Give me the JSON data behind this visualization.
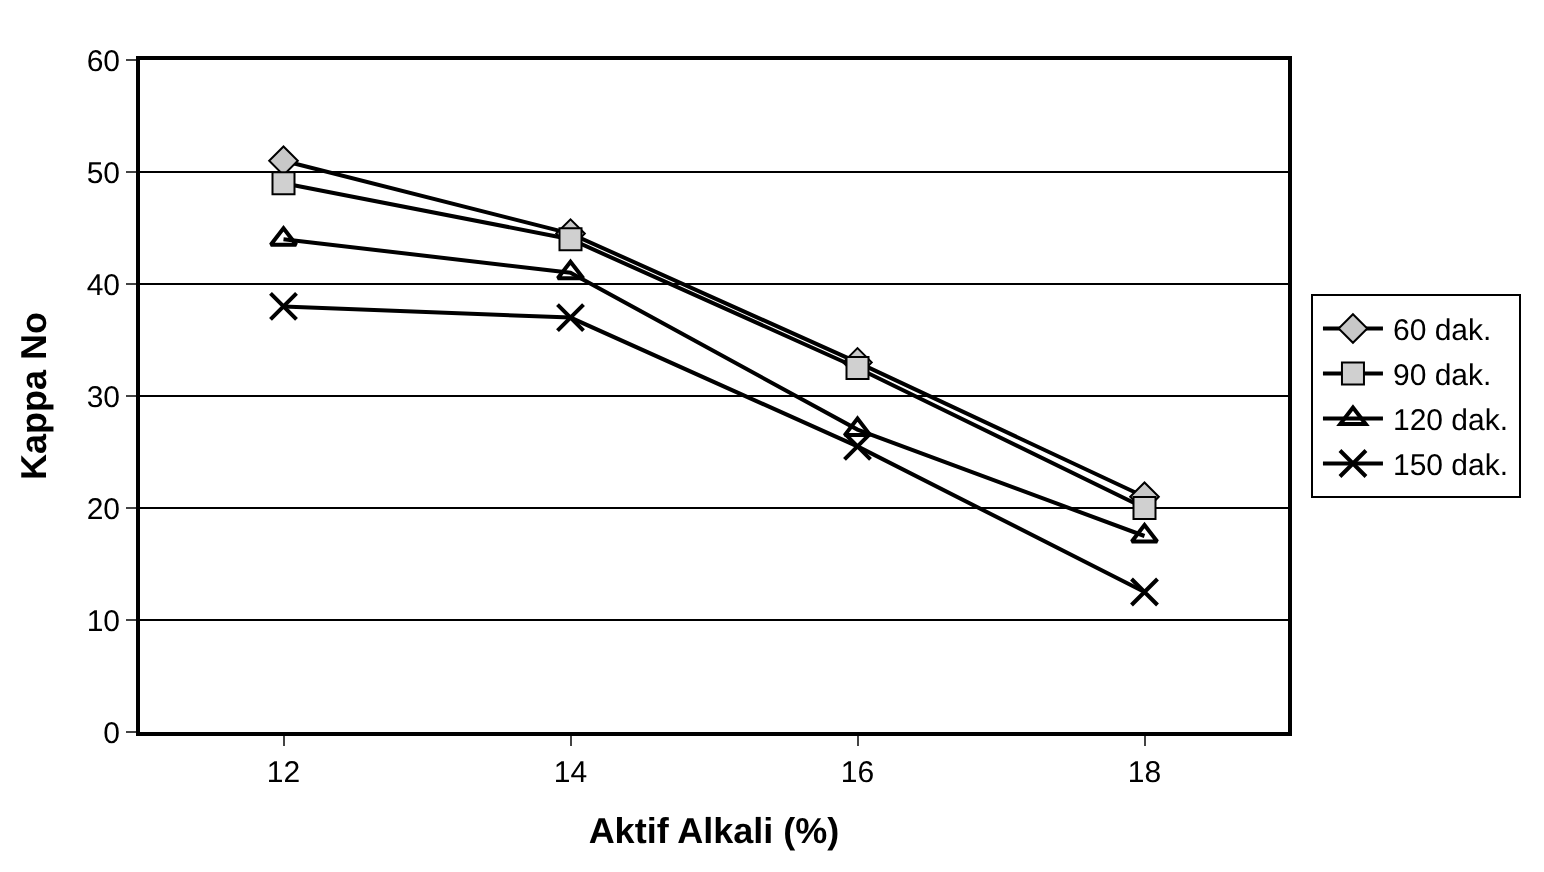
{
  "chart_data": {
    "type": "line",
    "xlabel": "Aktif Alkali (%)",
    "ylabel": "Kappa No",
    "categories": [
      "12",
      "14",
      "16",
      "18"
    ],
    "series": [
      {
        "name": "60 dak.",
        "color": "#000000",
        "marker": "diamond",
        "values": [
          51,
          44.5,
          33,
          21
        ]
      },
      {
        "name": "90 dak.",
        "color": "#000000",
        "marker": "square",
        "values": [
          49,
          44,
          32.5,
          20
        ]
      },
      {
        "name": "120 dak.",
        "color": "#000000",
        "marker": "triangle",
        "values": [
          44,
          41,
          27,
          17.5
        ]
      },
      {
        "name": "150 dak.",
        "color": "#000000",
        "marker": "cross",
        "values": [
          38,
          37,
          25.5,
          12.5
        ]
      }
    ],
    "ylim": [
      0,
      60
    ],
    "yticks": [
      0,
      10,
      20,
      30,
      40,
      50,
      60
    ],
    "grid": "y",
    "legend": "right",
    "line_style": "solid"
  }
}
